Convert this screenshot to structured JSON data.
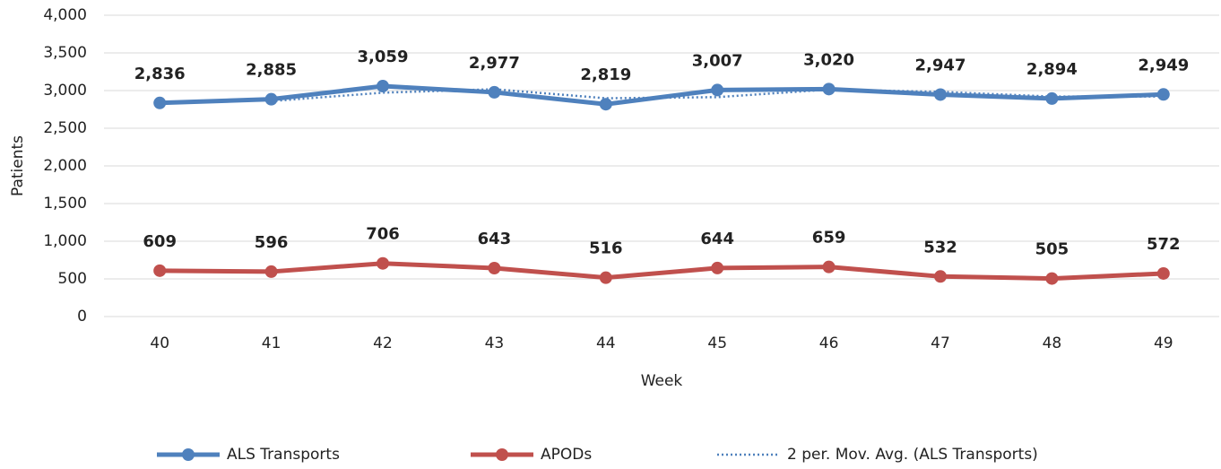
{
  "chart_data": {
    "type": "line",
    "x_label": "Week",
    "y_label": "Patients",
    "categories": [
      "40",
      "41",
      "42",
      "43",
      "44",
      "45",
      "46",
      "47",
      "48",
      "49"
    ],
    "series": [
      {
        "name": "ALS Transports",
        "color": "#4f81bd",
        "style": "solid",
        "markers": true,
        "values": [
          2836,
          2885,
          3059,
          2977,
          2819,
          3007,
          3020,
          2947,
          2894,
          2949
        ],
        "value_labels": [
          "2,836",
          "2,885",
          "3,059",
          "2,977",
          "2,819",
          "3,007",
          "3,020",
          "2,947",
          "2,894",
          "2,949"
        ]
      },
      {
        "name": "APODs",
        "color": "#c0504d",
        "style": "solid",
        "markers": true,
        "values": [
          609,
          596,
          706,
          643,
          516,
          644,
          659,
          532,
          505,
          572
        ]
      },
      {
        "name": "2 per. Mov. Avg. (ALS Transports)",
        "color": "#4f81bd",
        "style": "dotted",
        "markers": false,
        "values": [
          null,
          2860.5,
          2972,
          3018,
          2898,
          2913,
          3013.5,
          2983.5,
          2920.5,
          2921.5
        ]
      }
    ],
    "ylim": [
      0,
      4000
    ],
    "yticks": [
      0,
      500,
      {
        "value": 1000,
        "label": "1,000"
      },
      {
        "value": 1500,
        "label": "1,500"
      },
      {
        "value": 2000,
        "label": "2,000"
      },
      {
        "value": 2500,
        "label": "2,500"
      },
      {
        "value": 3000,
        "label": "3,000"
      },
      {
        "value": 3500,
        "label": "3,500"
      },
      {
        "value": 4000,
        "label": "4,000"
      }
    ],
    "grid": true,
    "legend": "bottom"
  }
}
